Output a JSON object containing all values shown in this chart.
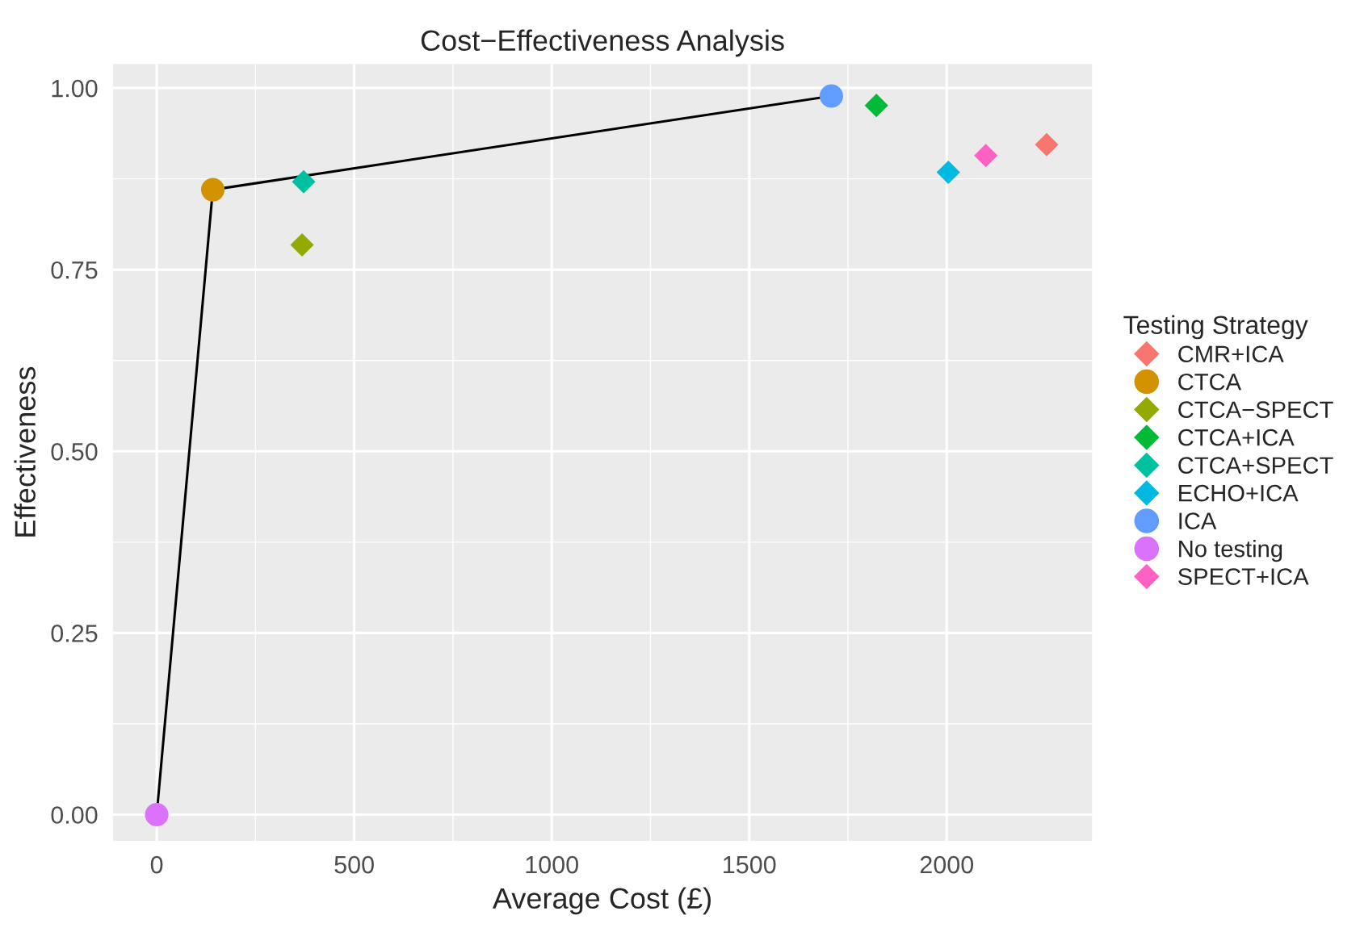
{
  "chart_data": {
    "type": "scatter",
    "title": "Cost−Effectiveness Analysis",
    "xlabel": "Average Cost (£)",
    "ylabel": "Effectiveness",
    "legend_title": "Testing Strategy",
    "legend": "right",
    "grid": true,
    "xlim": [
      -111,
      2368
    ],
    "ylim": [
      -0.036,
      1.033
    ],
    "xticks": [
      0,
      500,
      1000,
      1500,
      2000
    ],
    "yticks": [
      {
        "value": 0,
        "label": "0.00"
      },
      {
        "value": 0.25,
        "label": "0.25"
      },
      {
        "value": 0.5,
        "label": "0.50"
      },
      {
        "value": 0.75,
        "label": "0.75"
      },
      {
        "value": 1,
        "label": "1.00"
      }
    ],
    "series": [
      {
        "type": "line",
        "color": "#000000",
        "x": [
          0,
          142,
          1708
        ],
        "values": [
          0,
          0.86,
          0.989
        ],
        "marker": "none",
        "line_style": "solid"
      },
      {
        "name": "CMR+ICA",
        "color": "#F8766D",
        "x": [
          2253
        ],
        "values": [
          0.922
        ],
        "marker": "diamond"
      },
      {
        "name": "CTCA",
        "color": "#D39200",
        "x": [
          142
        ],
        "values": [
          0.86
        ],
        "marker": "circle"
      },
      {
        "name": "CTCA−SPECT",
        "color": "#93AA00",
        "x": [
          368
        ],
        "values": [
          0.784
        ],
        "marker": "diamond"
      },
      {
        "name": "CTCA+ICA",
        "color": "#00BA38",
        "x": [
          1822
        ],
        "values": [
          0.976
        ],
        "marker": "diamond"
      },
      {
        "name": "CTCA+SPECT",
        "color": "#00C19F",
        "x": [
          372
        ],
        "values": [
          0.871
        ],
        "marker": "diamond"
      },
      {
        "name": "ECHO+ICA",
        "color": "#00B9E3",
        "x": [
          2004
        ],
        "values": [
          0.884
        ],
        "marker": "diamond"
      },
      {
        "name": "ICA",
        "color": "#619CFF",
        "x": [
          1708
        ],
        "values": [
          0.989
        ],
        "marker": "circle"
      },
      {
        "name": "No testing",
        "color": "#DB72FB",
        "x": [
          0
        ],
        "values": [
          0
        ],
        "marker": "circle"
      },
      {
        "name": "SPECT+ICA",
        "color": "#FF61C3",
        "x": [
          2099
        ],
        "values": [
          0.907
        ],
        "marker": "diamond"
      }
    ]
  }
}
